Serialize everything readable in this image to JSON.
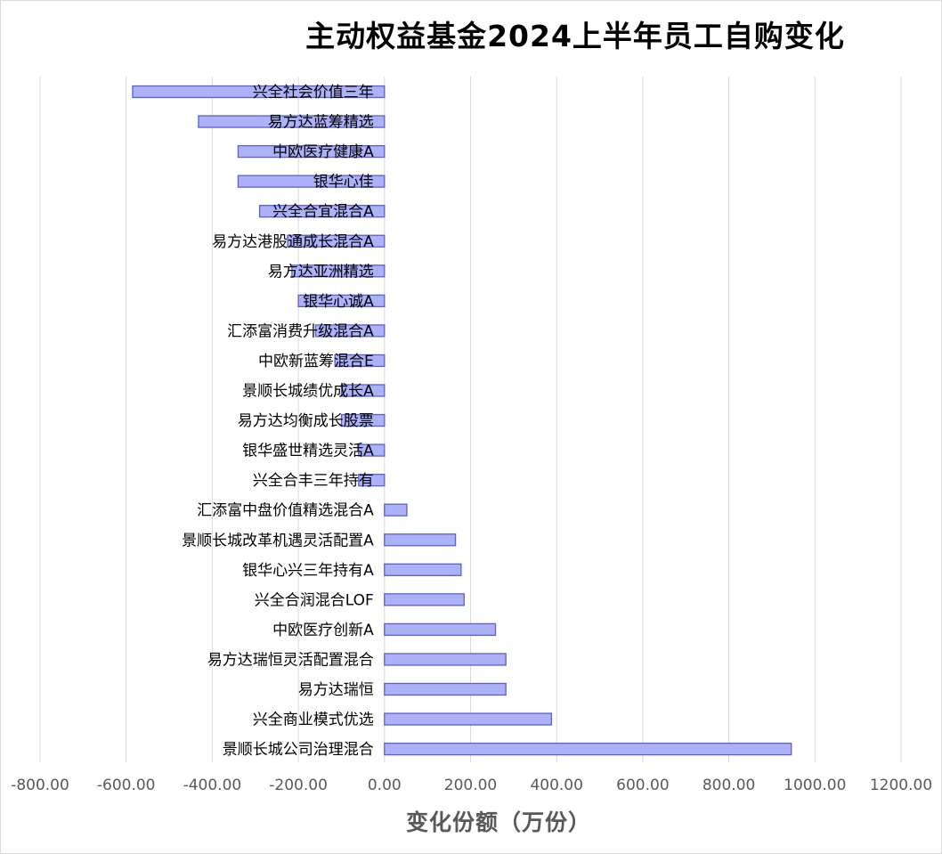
{
  "chart_data": {
    "type": "bar",
    "orientation": "horizontal",
    "title": "主动权益基金2024上半年员工自购变化",
    "xlabel": "变化份额（万份）",
    "ylabel": "",
    "xlim": [
      -800,
      1200
    ],
    "xticks": [
      -800,
      -600,
      -400,
      -200,
      0,
      200,
      400,
      600,
      800,
      1000,
      1200
    ],
    "xtick_labels": [
      "-800.00",
      "-600.00",
      "-400.00",
      "-200.00",
      "0.00",
      "200.00",
      "400.00",
      "600.00",
      "800.00",
      "1000.00",
      "1200.00"
    ],
    "grid": "vertical",
    "legend": "none",
    "bar_color": "#adb1f7",
    "bar_edge_color": "#5b5fd0",
    "categories": [
      "兴全社会价值三年",
      "易方达蓝筹精选",
      "中欧医疗健康A",
      "银华心佳",
      "兴全合宜混合A",
      "易方达港股通成长混合A",
      "易方达亚洲精选",
      "银华心诚A",
      "汇添富消费升级混合A",
      "中欧新蓝筹混合E",
      "景顺长城绩优成长A",
      "易方达均衡成长股票",
      "银华盛世精选灵活A",
      "兴全合丰三年持有",
      "汇添富中盘价值精选混合A",
      "景顺长城改革机遇灵活配置A",
      "银华心兴三年持有A",
      "兴全合润混合LOF",
      "中欧医疗创新A",
      "易方达瑞恒灵活配置混合",
      "易方达瑞恒",
      "兴全商业模式优选",
      "景顺长城公司治理混合"
    ],
    "values": [
      -585,
      -432,
      -340,
      -340,
      -290,
      -225,
      -215,
      -200,
      -160,
      -115,
      -100,
      -100,
      -60,
      -60,
      52,
      165,
      178,
      185,
      258,
      282,
      282,
      388,
      945
    ]
  }
}
